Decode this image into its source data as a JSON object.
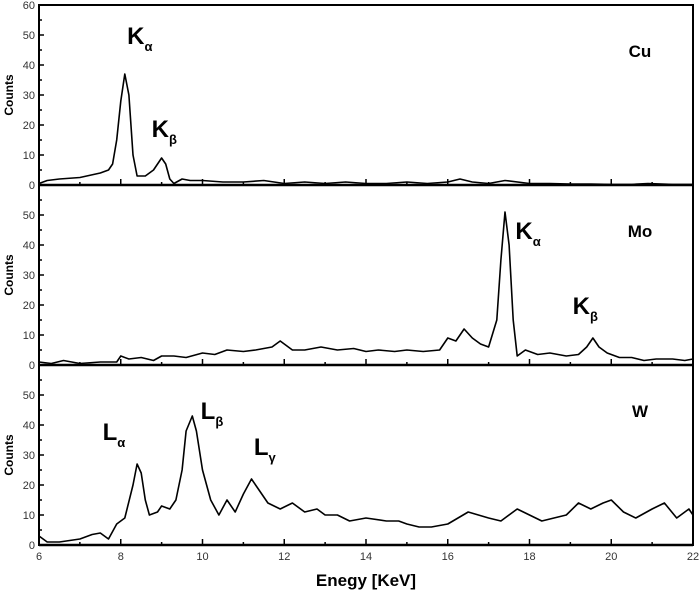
{
  "chart_data": {
    "type": "line",
    "title": "",
    "xlabel": "Enegy [KeV]",
    "ylabel": "Counts",
    "xlim": [
      6,
      22
    ],
    "x_ticks": [
      6,
      8,
      10,
      12,
      14,
      16,
      18,
      20,
      22
    ],
    "y_ticks": [
      0,
      10,
      20,
      30,
      40,
      50,
      60
    ],
    "grid": false,
    "legend": null,
    "panels": [
      {
        "name": "Cu",
        "ylim": [
          0,
          60
        ],
        "y_tick_labels": [
          "0",
          "10",
          "20",
          "30",
          "40",
          "50",
          "60"
        ],
        "annotations": [
          {
            "text": "K",
            "sub": "α",
            "x": 8.4,
            "y": 47
          },
          {
            "text": "K",
            "sub": "β",
            "x": 9.0,
            "y": 16
          }
        ],
        "points": [
          [
            6.0,
            0.5
          ],
          [
            6.2,
            1.5
          ],
          [
            6.5,
            2
          ],
          [
            7.0,
            2.5
          ],
          [
            7.5,
            4
          ],
          [
            7.7,
            5
          ],
          [
            7.8,
            7
          ],
          [
            7.9,
            15
          ],
          [
            8.0,
            28
          ],
          [
            8.1,
            37
          ],
          [
            8.2,
            30
          ],
          [
            8.3,
            10
          ],
          [
            8.4,
            3
          ],
          [
            8.6,
            3
          ],
          [
            8.8,
            5
          ],
          [
            9.0,
            9
          ],
          [
            9.1,
            7
          ],
          [
            9.2,
            2
          ],
          [
            9.3,
            0.5
          ],
          [
            9.5,
            2
          ],
          [
            9.7,
            1.5
          ],
          [
            10.0,
            1.5
          ],
          [
            10.5,
            1
          ],
          [
            11,
            1
          ],
          [
            11.5,
            1.5
          ],
          [
            12,
            0.5
          ],
          [
            12.5,
            1
          ],
          [
            13,
            0.5
          ],
          [
            13.5,
            1
          ],
          [
            14,
            0.5
          ],
          [
            14.5,
            0.5
          ],
          [
            15,
            1
          ],
          [
            15.5,
            0.5
          ],
          [
            16,
            1
          ],
          [
            16.3,
            2
          ],
          [
            16.6,
            1
          ],
          [
            17,
            0.5
          ],
          [
            17.4,
            1.5
          ],
          [
            18,
            0.5
          ],
          [
            18.5,
            0.5
          ],
          [
            19,
            0.3
          ],
          [
            19.5,
            0.3
          ],
          [
            20,
            0.2
          ],
          [
            20.5,
            0.2
          ],
          [
            20.9,
            0.5
          ],
          [
            21.5,
            0.2
          ],
          [
            22,
            0.2
          ]
        ]
      },
      {
        "name": "Mo",
        "ylim": [
          0,
          60
        ],
        "y_tick_labels": [
          "0",
          "10",
          "20",
          "30",
          "40",
          "50",
          ""
        ],
        "annotations": [
          {
            "text": "K",
            "sub": "α",
            "x": 17.9,
            "y": 42
          },
          {
            "text": "K",
            "sub": "β",
            "x": 19.3,
            "y": 17
          }
        ],
        "points": [
          [
            6.0,
            1
          ],
          [
            6.3,
            0.5
          ],
          [
            6.6,
            1.5
          ],
          [
            7.0,
            0.5
          ],
          [
            7.5,
            1
          ],
          [
            7.9,
            1
          ],
          [
            8.0,
            3
          ],
          [
            8.2,
            2
          ],
          [
            8.5,
            2.5
          ],
          [
            8.8,
            1.5
          ],
          [
            9.0,
            3
          ],
          [
            9.3,
            3
          ],
          [
            9.6,
            2.5
          ],
          [
            10.0,
            4
          ],
          [
            10.3,
            3.5
          ],
          [
            10.6,
            5
          ],
          [
            11.0,
            4.5
          ],
          [
            11.3,
            5
          ],
          [
            11.7,
            6
          ],
          [
            11.9,
            8
          ],
          [
            12.2,
            5
          ],
          [
            12.5,
            5
          ],
          [
            12.9,
            6
          ],
          [
            13.3,
            5
          ],
          [
            13.7,
            5.5
          ],
          [
            14.0,
            4.5
          ],
          [
            14.3,
            5
          ],
          [
            14.7,
            4.5
          ],
          [
            15.0,
            5
          ],
          [
            15.4,
            4.5
          ],
          [
            15.8,
            5
          ],
          [
            16.0,
            9
          ],
          [
            16.2,
            8
          ],
          [
            16.4,
            12
          ],
          [
            16.6,
            9
          ],
          [
            16.8,
            7
          ],
          [
            17.0,
            6
          ],
          [
            17.2,
            15
          ],
          [
            17.3,
            35
          ],
          [
            17.4,
            51
          ],
          [
            17.5,
            40
          ],
          [
            17.6,
            15
          ],
          [
            17.7,
            3
          ],
          [
            17.9,
            5
          ],
          [
            18.2,
            3.5
          ],
          [
            18.5,
            4
          ],
          [
            18.9,
            3
          ],
          [
            19.2,
            3.5
          ],
          [
            19.4,
            6
          ],
          [
            19.55,
            9
          ],
          [
            19.7,
            6
          ],
          [
            19.9,
            4
          ],
          [
            20.2,
            2.5
          ],
          [
            20.5,
            2.5
          ],
          [
            20.8,
            1.5
          ],
          [
            21.1,
            2
          ],
          [
            21.5,
            2
          ],
          [
            21.8,
            1.5
          ],
          [
            22,
            2
          ]
        ]
      },
      {
        "name": "W",
        "ylim": [
          0,
          60
        ],
        "y_tick_labels": [
          "0",
          "10",
          "20",
          "30",
          "40",
          "50",
          ""
        ],
        "annotations": [
          {
            "text": "L",
            "sub": "α",
            "x": 7.8,
            "y": 35
          },
          {
            "text": "L",
            "sub": "β",
            "x": 10.2,
            "y": 42
          },
          {
            "text": "L",
            "sub": "γ",
            "x": 11.5,
            "y": 30
          }
        ],
        "points": [
          [
            6.0,
            3
          ],
          [
            6.2,
            1
          ],
          [
            6.5,
            1
          ],
          [
            7.0,
            2
          ],
          [
            7.3,
            3.5
          ],
          [
            7.5,
            4
          ],
          [
            7.7,
            2
          ],
          [
            7.9,
            7
          ],
          [
            8.1,
            9
          ],
          [
            8.3,
            20
          ],
          [
            8.4,
            27
          ],
          [
            8.5,
            24
          ],
          [
            8.6,
            15
          ],
          [
            8.7,
            10
          ],
          [
            8.9,
            11
          ],
          [
            9.0,
            13
          ],
          [
            9.2,
            12
          ],
          [
            9.35,
            15
          ],
          [
            9.5,
            25
          ],
          [
            9.6,
            38
          ],
          [
            9.75,
            43
          ],
          [
            9.85,
            38
          ],
          [
            10.0,
            25
          ],
          [
            10.2,
            15
          ],
          [
            10.4,
            10
          ],
          [
            10.6,
            15
          ],
          [
            10.8,
            11
          ],
          [
            11.0,
            17
          ],
          [
            11.2,
            22
          ],
          [
            11.4,
            18
          ],
          [
            11.6,
            14
          ],
          [
            11.9,
            12
          ],
          [
            12.2,
            14
          ],
          [
            12.5,
            11
          ],
          [
            12.8,
            12
          ],
          [
            13.0,
            10
          ],
          [
            13.3,
            10
          ],
          [
            13.6,
            8
          ],
          [
            14.0,
            9
          ],
          [
            14.5,
            8
          ],
          [
            14.8,
            8
          ],
          [
            15.0,
            7
          ],
          [
            15.3,
            6
          ],
          [
            15.6,
            6
          ],
          [
            16.0,
            7
          ],
          [
            16.5,
            11
          ],
          [
            17.0,
            9
          ],
          [
            17.3,
            8
          ],
          [
            17.7,
            12
          ],
          [
            18.0,
            10
          ],
          [
            18.3,
            8
          ],
          [
            18.6,
            9
          ],
          [
            18.9,
            10
          ],
          [
            19.2,
            14
          ],
          [
            19.5,
            12
          ],
          [
            19.8,
            14
          ],
          [
            20.0,
            15
          ],
          [
            20.3,
            11
          ],
          [
            20.6,
            9
          ],
          [
            21.0,
            12
          ],
          [
            21.3,
            14
          ],
          [
            21.6,
            9
          ],
          [
            21.9,
            12
          ],
          [
            22,
            10
          ]
        ]
      }
    ]
  },
  "axis": {
    "x_title": "Enegy [KeV]",
    "y_title": "Counts"
  },
  "panels_labels": {
    "cu": "Cu",
    "mo": "Mo",
    "w": "W"
  }
}
